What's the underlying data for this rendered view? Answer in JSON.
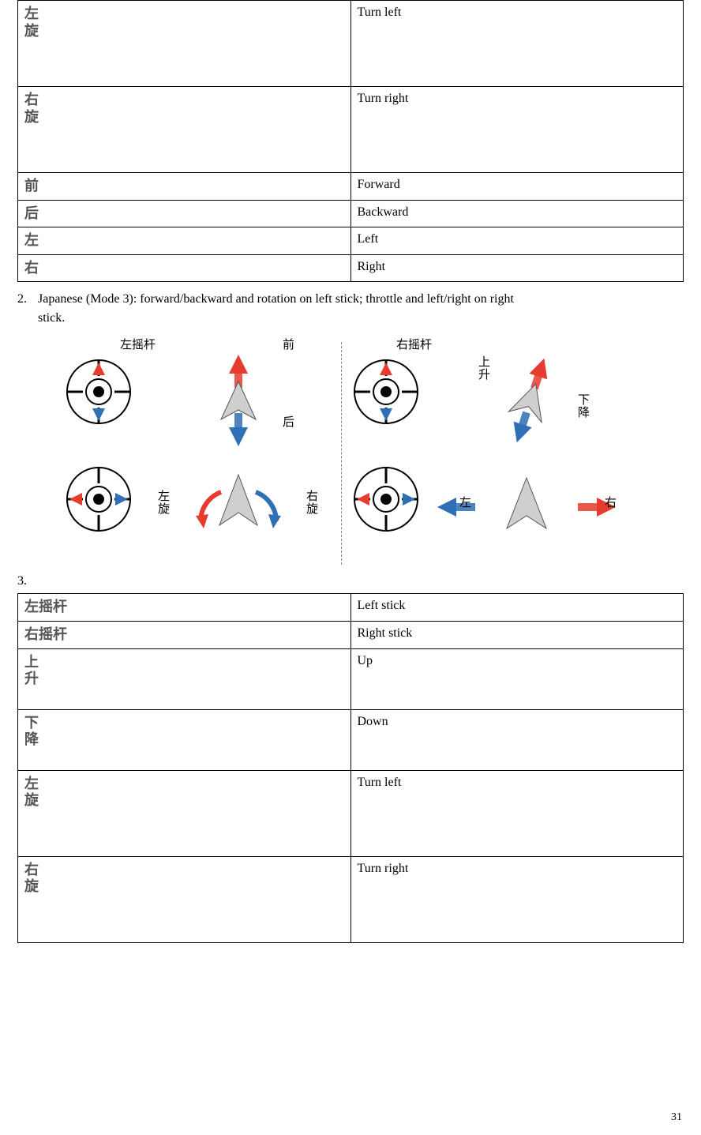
{
  "page_number": "31",
  "colors": {
    "red": "#e63b2e",
    "blue": "#2f6fb3",
    "grey": "#666666",
    "black": "#000000",
    "bg": "#ffffff"
  },
  "table1": {
    "rows": [
      {
        "cn_lines": [
          "左",
          "旋"
        ],
        "en": "Turn left",
        "tall": true
      },
      {
        "cn_lines": [
          "右",
          "旋"
        ],
        "en": "Turn right",
        "tall": true
      },
      {
        "cn_lines": [
          "前"
        ],
        "en": "Forward",
        "tall": false
      },
      {
        "cn_lines": [
          "后"
        ],
        "en": "Backward",
        "tall": false
      },
      {
        "cn_lines": [
          "左"
        ],
        "en": "Left",
        "tall": false
      },
      {
        "cn_lines": [
          "右"
        ],
        "en": "Right",
        "tall": false
      }
    ]
  },
  "para2": {
    "number": "2.",
    "text_line1": "Japanese (Mode 3): forward/backward and rotation on left stick; throttle and left/right on right",
    "text_line2": "stick."
  },
  "three_label": "3.",
  "diagram": {
    "left_title": "左摇杆",
    "right_title": "右摇杆",
    "labels_left": {
      "front": "前",
      "back": "后",
      "turn_left": "左\n旋",
      "turn_right": "右\n旋"
    },
    "labels_right": {
      "up": "上\n升",
      "down": "下\n降",
      "left": "左",
      "right": "右"
    }
  },
  "table2": {
    "rows": [
      {
        "cn_lines": [
          "左摇杆"
        ],
        "en": "Left stick",
        "tall": false
      },
      {
        "cn_lines": [
          "右摇杆"
        ],
        "en": "Right stick",
        "tall": false
      },
      {
        "cn_lines": [
          "上",
          "升"
        ],
        "en": "Up",
        "tall": true,
        "tallpx": 64
      },
      {
        "cn_lines": [
          "下",
          "降"
        ],
        "en": "Down",
        "tall": true,
        "tallpx": 64
      },
      {
        "cn_lines": [
          "左",
          "旋"
        ],
        "en": "Turn left",
        "tall": true
      },
      {
        "cn_lines": [
          "右",
          "旋"
        ],
        "en": "Turn right",
        "tall": true
      }
    ]
  }
}
